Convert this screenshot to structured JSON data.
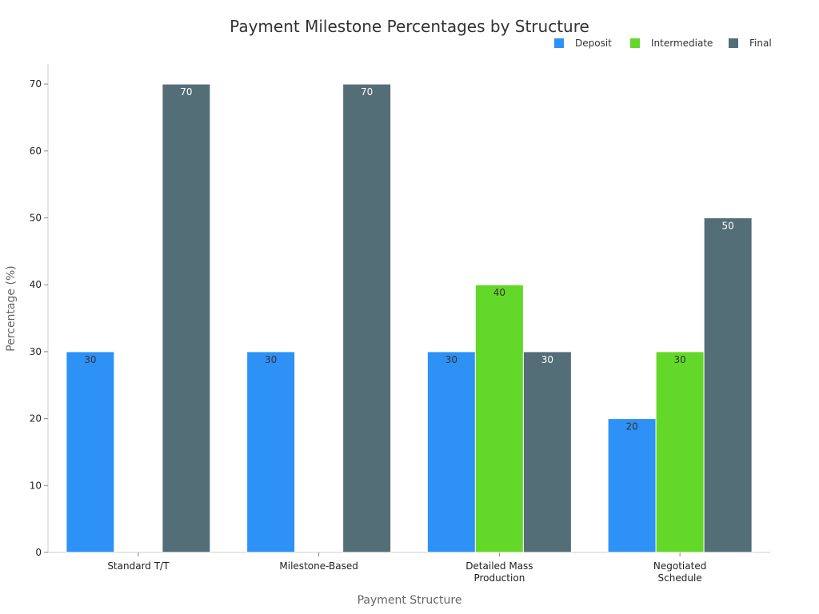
{
  "chart_data": {
    "type": "bar",
    "title": "Payment Milestone Percentages by Structure",
    "xlabel": "Payment Structure",
    "ylabel": "Percentage (%)",
    "ylim": [
      0,
      73
    ],
    "yticks": [
      0,
      10,
      20,
      30,
      40,
      50,
      60,
      70
    ],
    "categories": [
      [
        "Standard T/T"
      ],
      [
        "Milestone-Based"
      ],
      [
        "Detailed Mass",
        "Production"
      ],
      [
        "Negotiated",
        "Schedule"
      ]
    ],
    "series": [
      {
        "name": "Deposit",
        "color": "#2e91f6",
        "label_color": "#333333",
        "values": [
          30,
          30,
          30,
          20
        ]
      },
      {
        "name": "Intermediate",
        "color": "#64d828",
        "label_color": "#333333",
        "values": [
          0,
          0,
          40,
          30
        ]
      },
      {
        "name": "Final",
        "color": "#546e78",
        "label_color": "#ffffff",
        "values": [
          70,
          70,
          30,
          50
        ]
      }
    ],
    "legend_position": "top-right",
    "grid": false
  }
}
